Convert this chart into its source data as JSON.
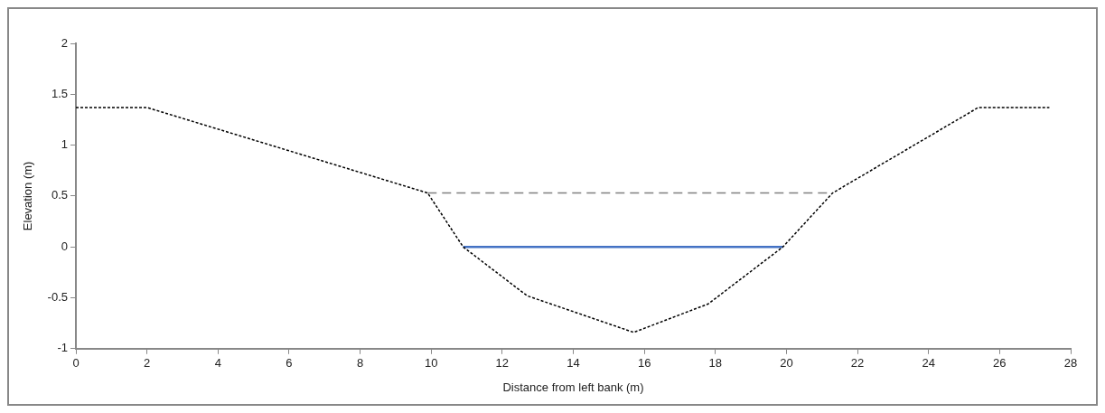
{
  "chart_data": {
    "type": "line",
    "xlabel": "Distance from left bank (m)",
    "ylabel": "Elevation (m)",
    "xlim": [
      0,
      28
    ],
    "xticks": [
      0,
      2,
      4,
      6,
      8,
      10,
      12,
      14,
      16,
      18,
      20,
      22,
      24,
      26,
      28
    ],
    "ylim": [
      -1,
      2
    ],
    "yticks": [
      -1,
      -0.5,
      0,
      0.5,
      1,
      1.5,
      2
    ],
    "grid": false,
    "legend": false,
    "marker": "none",
    "series": [
      {
        "type": "line",
        "color": "#000000",
        "line_style": "dotted",
        "x": [
          0,
          2,
          9.9,
          10.9,
          12.7,
          15.7,
          17.8,
          19.9,
          21.3,
          25.4,
          27.4
        ],
        "values": [
          1.37,
          1.37,
          0.53,
          0,
          -0.48,
          -0.84,
          -0.56,
          0,
          0.53,
          1.37,
          1.37
        ]
      },
      {
        "type": "line",
        "color": "#808080",
        "line_style": "dashed",
        "x": [
          9.9,
          21.3
        ],
        "values": [
          0.53,
          0.53
        ]
      },
      {
        "type": "line",
        "color": "#4472c4",
        "line_style": "solid",
        "x": [
          10.9,
          19.9
        ],
        "values": [
          0,
          0
        ]
      }
    ]
  }
}
